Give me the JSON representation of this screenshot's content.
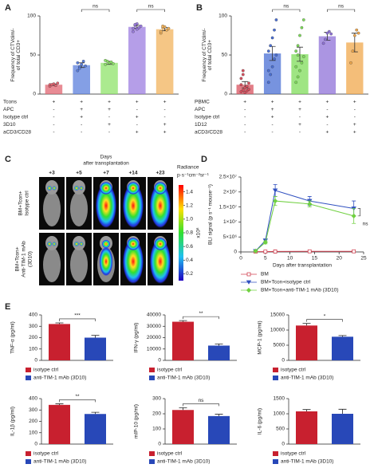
{
  "panel_labels": [
    "A",
    "B",
    "C",
    "D",
    "E"
  ],
  "imaging": {
    "title_lines": [
      "Days",
      "after transplantation"
    ],
    "days": [
      "+3",
      "+5",
      "+7",
      "+14",
      "+23"
    ],
    "rows": [
      [
        "BM+Tcon+",
        "Isotype ctrl"
      ],
      [
        "BM+Tcon+",
        "Anti-TIM-1 mAb",
        "(3D10)"
      ]
    ],
    "colorbar": {
      "title": "Radiance",
      "unit": "p·s⁻¹cm⁻²sr⁻¹",
      "scale": "x10⁸",
      "lim": [
        0.1,
        1.5
      ],
      "ticks": [
        1.4,
        1.2,
        {
          "value": 1.0,
          "label": "1.0"
        },
        0.8,
        0.6,
        0.4,
        0.2
      ]
    }
  },
  "chart_data": [
    {
      "type": "bar",
      "y_label": [
        "Frequency of CTVdim/-",
        "of total CD3+"
      ],
      "categories": [
        null,
        null,
        null,
        null,
        null
      ],
      "values": [
        12,
        37,
        40,
        86,
        83
      ],
      "errors": [
        1,
        3,
        2,
        2,
        2
      ],
      "points": [
        [
          10,
          12,
          13,
          11,
          14,
          12,
          12
        ],
        [
          30,
          35,
          38,
          42,
          36,
          40,
          33
        ],
        [
          38,
          42,
          40,
          41,
          39,
          43
        ],
        [
          80,
          88,
          90,
          85,
          87,
          84,
          89,
          83
        ],
        [
          78,
          85,
          86,
          82,
          84,
          80,
          87
        ]
      ],
      "colors": [
        "#e06470",
        "#5b7fdc",
        "#8fe36a",
        "#9c7ee0",
        "#f2b35c"
      ],
      "ylim": [
        0,
        100
      ],
      "yticks": [
        0,
        50,
        100
      ],
      "annotations": [
        "ns",
        "ns"
      ],
      "conditions": [
        {
          "name": "Tcons",
          "signs": [
            "+",
            "+",
            "+",
            "+",
            "+"
          ]
        },
        {
          "name": "APC",
          "signs": [
            "-",
            "+",
            "+",
            "-",
            "-"
          ]
        },
        {
          "name": "Isotype ctrl",
          "signs": [
            "-",
            "+",
            "-",
            "+",
            "-"
          ]
        },
        {
          "name": "3D10",
          "signs": [
            "-",
            "-",
            "+",
            "-",
            "+"
          ]
        },
        {
          "name": "aCD3/CD28",
          "signs": [
            "-",
            "-",
            "-",
            "+",
            "+"
          ]
        }
      ]
    },
    {
      "type": "bar",
      "y_label": [
        "Frequency of CTVdim/-",
        "of total CD3+"
      ],
      "categories": [
        null,
        null,
        null,
        null,
        null
      ],
      "values": [
        12,
        52,
        51,
        74,
        66
      ],
      "errors": [
        4,
        9,
        9,
        5,
        12
      ],
      "points": [
        [
          3,
          5,
          8,
          10,
          14,
          20,
          25,
          2,
          4,
          6,
          12,
          30
        ],
        [
          15,
          25,
          35,
          45,
          50,
          55,
          62,
          72,
          82,
          95,
          30
        ],
        [
          15,
          22,
          30,
          40,
          48,
          55,
          62,
          75,
          85,
          95,
          35,
          50
        ],
        [
          65,
          70,
          78,
          80,
          77
        ],
        [
          40,
          55,
          75,
          82,
          78
        ]
      ],
      "colors": [
        "#d8505e",
        "#4a6fd4",
        "#7fdc5a",
        "#8f72d8",
        "#f0a84c"
      ],
      "ylim": [
        0,
        100
      ],
      "yticks": [
        0,
        50,
        100
      ],
      "annotations": [
        "ns",
        "ns"
      ],
      "conditions": [
        {
          "name": "PBMC",
          "signs": [
            "+",
            "+",
            "+",
            "+",
            "+"
          ]
        },
        {
          "name": "APC",
          "signs": [
            "-",
            "+",
            "+",
            "-",
            "-"
          ]
        },
        {
          "name": "Isotype ctrl",
          "signs": [
            "-",
            "+",
            "-",
            "+",
            "-"
          ]
        },
        {
          "name": "1D12",
          "signs": [
            "-",
            "-",
            "+",
            "-",
            "+"
          ]
        },
        {
          "name": "aCD3/CD28",
          "signs": [
            "-",
            "-",
            "-",
            "+",
            "+"
          ]
        }
      ]
    },
    {
      "type": "line",
      "x_label": "Days after transplantation",
      "y_label": [
        "BLI signal (p s⁻¹ mouse⁻¹)"
      ],
      "x": [
        3,
        5,
        7,
        14,
        23
      ],
      "series": [
        {
          "name": "BM",
          "color": "#d04050",
          "marker": "square",
          "values": [
            100000,
            100000,
            150000,
            200000,
            200000
          ]
        },
        {
          "name": "BM+Tcon+isotype ctrl",
          "color": "#3050c0",
          "marker": "triangle",
          "values": [
            300000,
            3800000,
            20500000,
            17000000,
            14500000
          ],
          "errors": [
            100000,
            500000,
            2000000,
            1500000,
            2500000
          ]
        },
        {
          "name": "BM+Tcon+anti-TIM-1 mAb (3D10)",
          "color": "#70d040",
          "marker": "diamond",
          "values": [
            300000,
            3200000,
            17000000,
            16000000,
            12000000
          ],
          "errors": [
            100000,
            500000,
            1500000,
            1000000,
            2500000
          ]
        }
      ],
      "xlim": [
        0,
        25
      ],
      "xticks": [
        0,
        5,
        10,
        15,
        20,
        25
      ],
      "ylim": [
        0,
        25000000
      ],
      "yticks": [
        0,
        {
          "value": 5000000,
          "label": "5×10⁶"
        },
        {
          "value": 10000000,
          "label": "1×10⁷"
        },
        {
          "value": 15000000,
          "label": "1.5×10⁷"
        },
        {
          "value": 20000000,
          "label": "2×10⁷"
        },
        {
          "value": 25000000,
          "label": "2.5×10⁷"
        }
      ],
      "annotation": "ns"
    },
    {
      "type": "bar",
      "y_label": [
        "TNF-α (pg/ml)"
      ],
      "ylim": [
        0,
        400
      ],
      "yticks": [
        0,
        100,
        200,
        300,
        400
      ],
      "annotation": "***",
      "series": [
        {
          "name": "isotype ctrl",
          "color": "#c8202f",
          "values": [
            320
          ],
          "errors": [
            10
          ]
        },
        {
          "name": "anti-TIM-1 mAb (3D10)",
          "color": "#2848b8",
          "values": [
            200
          ],
          "errors": [
            20
          ]
        }
      ]
    },
    {
      "type": "bar",
      "y_label": [
        "IFN-γ (pg/ml)"
      ],
      "ylim": [
        0,
        40000
      ],
      "yticks": [
        0,
        10000,
        20000,
        30000,
        40000
      ],
      "annotation": "**",
      "series": [
        {
          "name": "isotype ctrl",
          "color": "#c8202f",
          "values": [
            34000
          ],
          "errors": [
            1000
          ]
        },
        {
          "name": "anti-TIM-1 mAb (3D10)",
          "color": "#2848b8",
          "values": [
            13000
          ],
          "errors": [
            1500
          ]
        }
      ]
    },
    {
      "type": "bar",
      "y_label": [
        "MCP-1 (pg/ml)"
      ],
      "ylim": [
        0,
        15000
      ],
      "yticks": [
        0,
        5000,
        10000,
        15000
      ],
      "annotation": "*",
      "series": [
        {
          "name": "isotype ctrl",
          "color": "#c8202f",
          "values": [
            11500
          ],
          "errors": [
            700
          ]
        },
        {
          "name": "anti-TIM-1 mAb (3D10)",
          "color": "#2848b8",
          "values": [
            7800
          ],
          "errors": [
            400
          ]
        }
      ]
    },
    {
      "type": "bar",
      "y_label": [
        "IL-1β (pg/ml)"
      ],
      "ylim": [
        0,
        400
      ],
      "yticks": [
        0,
        100,
        200,
        300,
        400
      ],
      "annotation": "**",
      "series": [
        {
          "name": "isotype ctrl",
          "color": "#c8202f",
          "values": [
            345
          ],
          "errors": [
            10
          ]
        },
        {
          "name": "anti-TIM-1 mAb (3D10)",
          "color": "#2848b8",
          "values": [
            265
          ],
          "errors": [
            15
          ]
        }
      ]
    },
    {
      "type": "bar",
      "y_label": [
        "mIP-10 (pg/ml)"
      ],
      "ylim": [
        0,
        300
      ],
      "yticks": [
        0,
        100,
        200,
        300
      ],
      "annotation": "ns",
      "series": [
        {
          "name": "isotype ctrl",
          "color": "#c8202f",
          "values": [
            225
          ],
          "errors": [
            15
          ]
        },
        {
          "name": "anti-TIM-1 mAb (3D10)",
          "color": "#2848b8",
          "values": [
            185
          ],
          "errors": [
            12
          ]
        }
      ]
    },
    {
      "type": "bar",
      "y_label": [
        "IL-6 (pg/ml)"
      ],
      "ylim": [
        0,
        1500
      ],
      "yticks": [
        0,
        500,
        1000,
        1500
      ],
      "series": [
        {
          "name": "isotype ctrl",
          "color": "#c8202f",
          "values": [
            1080
          ],
          "errors": [
            60
          ]
        },
        {
          "name": "anti-TIM-1 mAb (3D10)",
          "color": "#2848b8",
          "values": [
            1000
          ],
          "errors": [
            150
          ]
        }
      ]
    }
  ]
}
